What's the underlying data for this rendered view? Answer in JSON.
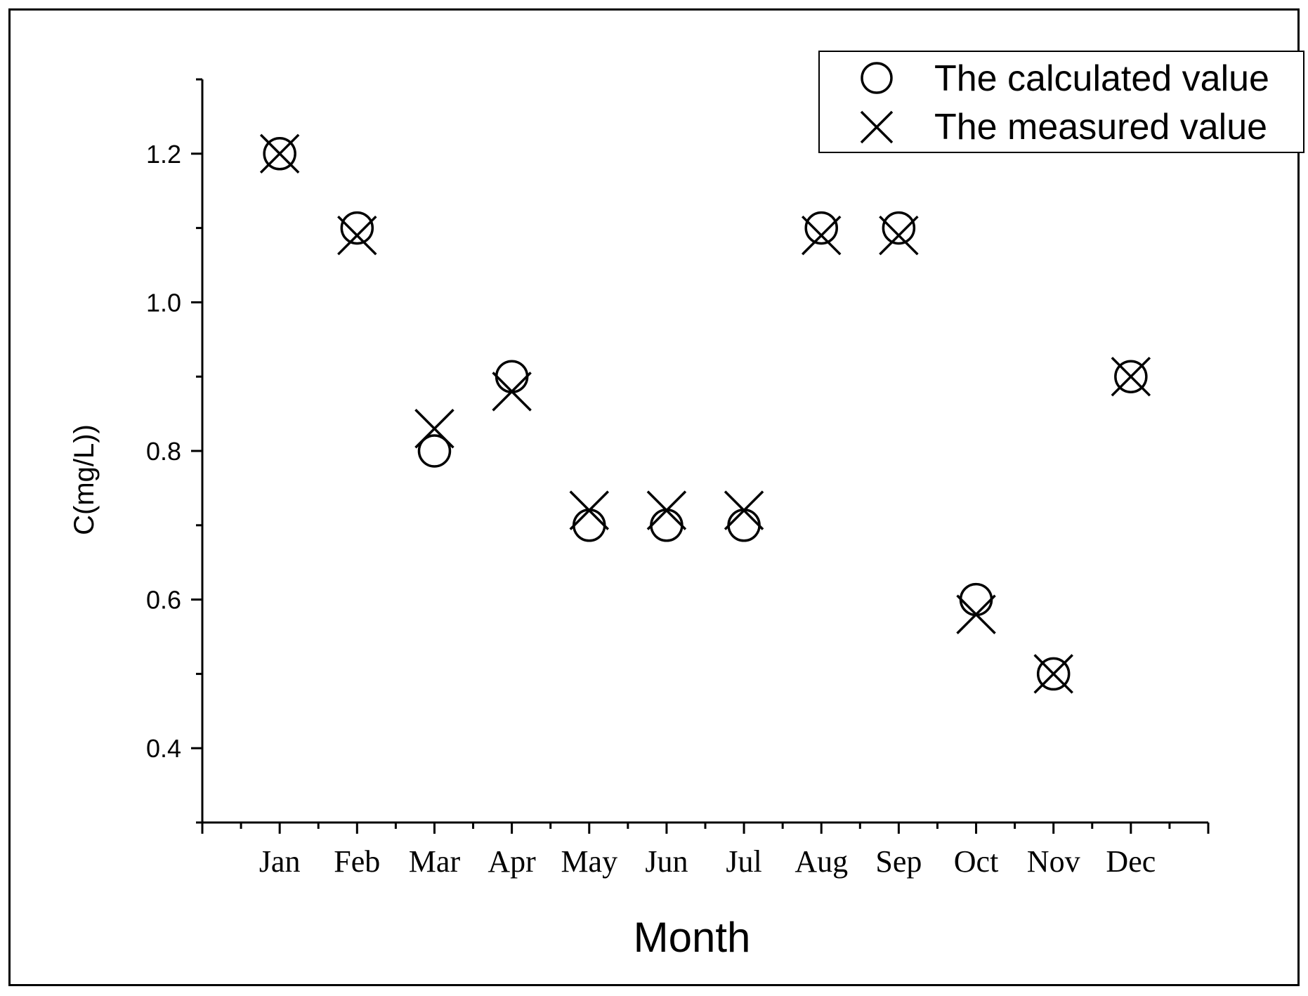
{
  "chart_data": {
    "type": "scatter",
    "categories": [
      "Jan",
      "Feb",
      "Mar",
      "Apr",
      "May",
      "Jun",
      "Jul",
      "Aug",
      "Sep",
      "Oct",
      "Nov",
      "Dec"
    ],
    "series": [
      {
        "name": "The calculated value",
        "marker": "circle",
        "values": [
          1.2,
          1.1,
          0.8,
          0.9,
          0.7,
          0.7,
          0.7,
          1.1,
          1.1,
          0.6,
          0.5,
          0.9
        ]
      },
      {
        "name": "The measured value",
        "marker": "x",
        "values": [
          1.2,
          1.09,
          0.83,
          0.88,
          0.72,
          0.72,
          0.72,
          1.09,
          1.09,
          0.58,
          0.5,
          0.9
        ]
      }
    ],
    "xlabel": "Month",
    "ylabel": "C(mg/L))",
    "ylim": [
      0.3,
      1.3
    ],
    "yticks": [
      "0.4",
      "0.6",
      "0.8",
      "1.0",
      "1.2"
    ],
    "grid": false,
    "legend_position": "top-right",
    "color": "#000000"
  }
}
